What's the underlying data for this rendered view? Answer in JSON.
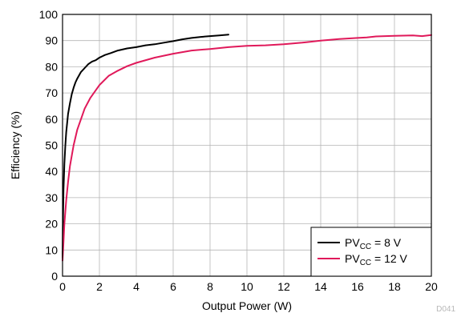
{
  "chart_data": {
    "type": "line",
    "title": "",
    "xlabel": "Output Power (W)",
    "ylabel": "Efficiency (%)",
    "xlim": [
      0,
      20
    ],
    "ylim": [
      0,
      100
    ],
    "xticks": [
      0,
      2,
      4,
      6,
      8,
      10,
      12,
      14,
      16,
      18,
      20
    ],
    "yticks": [
      0,
      10,
      20,
      30,
      40,
      50,
      60,
      70,
      80,
      90,
      100
    ],
    "grid": true,
    "legend_position": "bottom-right",
    "series": [
      {
        "name": "PVCC = 8 V",
        "legend_main": "PV",
        "legend_sub": "CC",
        "legend_rest": " = 8 V",
        "color": "#000000",
        "x": [
          0.0,
          0.02,
          0.05,
          0.1,
          0.15,
          0.2,
          0.3,
          0.4,
          0.5,
          0.6,
          0.7,
          0.8,
          1.0,
          1.2,
          1.4,
          1.6,
          1.8,
          2.0,
          2.3,
          2.6,
          3.0,
          3.5,
          4.0,
          4.5,
          5.0,
          5.5,
          6.0,
          6.5,
          7.0,
          7.5,
          8.0,
          8.5,
          9.0
        ],
        "y": [
          7,
          20,
          33,
          43,
          50,
          55,
          62,
          66,
          69.5,
          72,
          74,
          75.5,
          78,
          79.5,
          81,
          82,
          82.5,
          83.5,
          84.5,
          85.2,
          86.2,
          87,
          87.5,
          88.2,
          88.6,
          89.2,
          89.8,
          90.5,
          91,
          91.4,
          91.7,
          92,
          92.3
        ]
      },
      {
        "name": "PVCC = 12 V",
        "legend_main": "PV",
        "legend_sub": "CC",
        "legend_rest": " = 12 V",
        "color": "#e0195a",
        "x": [
          0.0,
          0.05,
          0.1,
          0.2,
          0.3,
          0.4,
          0.5,
          0.6,
          0.8,
          1.0,
          1.2,
          1.5,
          2.0,
          2.5,
          3.0,
          3.5,
          4.0,
          5.0,
          6.0,
          7.0,
          8.0,
          9.0,
          10.0,
          11.0,
          12.0,
          13.0,
          14.0,
          15.0,
          16.0,
          16.5,
          17.0,
          18.0,
          19.0,
          19.5,
          20.0
        ],
        "y": [
          6,
          13,
          20,
          29,
          36,
          42,
          46,
          50,
          56,
          60,
          64,
          68,
          73,
          76.5,
          78.5,
          80.2,
          81.5,
          83.5,
          85,
          86.2,
          86.8,
          87.5,
          88,
          88.2,
          88.6,
          89.2,
          90,
          90.6,
          91,
          91.2,
          91.6,
          91.8,
          92,
          91.7,
          92.1
        ]
      }
    ]
  },
  "watermark": "D041"
}
